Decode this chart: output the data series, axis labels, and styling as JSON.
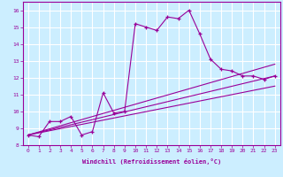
{
  "title": "",
  "xlabel": "Windchill (Refroidissement éolien,°C)",
  "ylabel": "",
  "bg_color": "#cceeff",
  "line_color": "#990099",
  "grid_color": "#ffffff",
  "xlim": [
    -0.5,
    23.5
  ],
  "ylim": [
    8,
    16.5
  ],
  "xticks": [
    0,
    1,
    2,
    3,
    4,
    5,
    6,
    7,
    8,
    9,
    10,
    11,
    12,
    13,
    14,
    15,
    16,
    17,
    18,
    19,
    20,
    21,
    22,
    23
  ],
  "yticks": [
    8,
    9,
    10,
    11,
    12,
    13,
    14,
    15,
    16
  ],
  "line1_x": [
    0,
    1,
    2,
    3,
    4,
    5,
    6,
    7,
    8,
    9,
    10,
    11,
    12,
    13,
    14,
    15,
    16,
    17,
    18,
    19,
    20,
    21,
    22,
    23
  ],
  "line1_y": [
    8.6,
    8.5,
    9.4,
    9.4,
    9.7,
    8.6,
    8.8,
    11.1,
    9.9,
    10.0,
    15.2,
    15.0,
    14.8,
    15.6,
    15.5,
    16.0,
    14.6,
    13.1,
    12.5,
    12.4,
    12.1,
    12.1,
    11.9,
    12.1
  ],
  "line2_x": [
    0,
    23
  ],
  "line2_y": [
    8.6,
    12.1
  ],
  "line3_x": [
    0,
    23
  ],
  "line3_y": [
    8.6,
    11.5
  ],
  "line4_x": [
    0,
    23
  ],
  "line4_y": [
    8.6,
    12.8
  ]
}
